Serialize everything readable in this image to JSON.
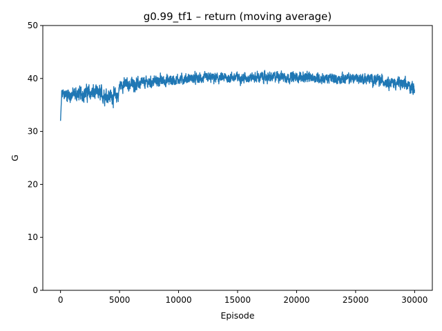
{
  "chart_data": {
    "type": "line",
    "title": "g0.99_tf1 – return (moving average)",
    "xlabel": "Episode",
    "ylabel": "G",
    "xlim": [
      -1500,
      31500
    ],
    "ylim": [
      0,
      50
    ],
    "xticks": [
      0,
      5000,
      10000,
      15000,
      20000,
      25000,
      30000
    ],
    "xtick_labels": [
      "0",
      "5000",
      "10000",
      "15000",
      "20000",
      "25000",
      "30000"
    ],
    "yticks": [
      0,
      10,
      20,
      30,
      40,
      50
    ],
    "ytick_labels": [
      "0",
      "10",
      "20",
      "30",
      "40",
      "50"
    ],
    "grid": false,
    "legend": "none",
    "series": [
      {
        "color": "#1f77b4",
        "x": [
          0,
          100,
          200,
          500,
          1000,
          1500,
          2000,
          2500,
          3000,
          3500,
          4000,
          4500,
          4900,
          5000,
          5200,
          5500,
          6000,
          6500,
          7000,
          7500,
          8000,
          8500,
          9000,
          9500,
          10000,
          10500,
          11000,
          11500,
          12000,
          12500,
          13000,
          13500,
          14000,
          14500,
          15000,
          15500,
          16000,
          16500,
          17000,
          17500,
          18000,
          18500,
          19000,
          19500,
          20000,
          20500,
          21000,
          21500,
          22000,
          22500,
          23000,
          23500,
          24000,
          24500,
          25000,
          25500,
          26000,
          26500,
          27000,
          27500,
          28000,
          28500,
          29000,
          29500,
          30000
        ],
        "y": [
          32.0,
          36.8,
          37.0,
          37.0,
          36.9,
          37.1,
          37.2,
          37.3,
          37.2,
          37.0,
          36.8,
          36.6,
          36.8,
          38.6,
          38.9,
          38.8,
          38.9,
          39.0,
          39.1,
          39.3,
          39.5,
          39.6,
          39.6,
          39.7,
          39.8,
          39.9,
          40.0,
          40.0,
          40.0,
          40.1,
          40.0,
          40.0,
          40.1,
          40.2,
          40.2,
          40.1,
          40.2,
          40.2,
          40.3,
          40.2,
          40.2,
          40.5,
          40.3,
          40.2,
          40.2,
          40.3,
          40.1,
          40.2,
          40.0,
          40.0,
          40.0,
          39.9,
          40.0,
          40.0,
          40.1,
          40.0,
          39.9,
          39.8,
          39.6,
          39.5,
          39.3,
          39.1,
          38.9,
          38.6,
          38.2
        ],
        "noise_amplitude": [
          0,
          1.2,
          1.2,
          1.2,
          1.3,
          1.3,
          1.3,
          1.4,
          1.4,
          1.4,
          1.4,
          1.4,
          1.4,
          1.1,
          1.1,
          1.1,
          1.1,
          1.1,
          1.0,
          1.0,
          1.0,
          1.0,
          1.0,
          1.0,
          0.9,
          0.9,
          0.9,
          0.9,
          0.9,
          0.9,
          0.9,
          0.9,
          0.9,
          0.9,
          0.9,
          0.9,
          0.9,
          0.9,
          0.9,
          0.9,
          0.9,
          1.0,
          0.9,
          0.9,
          0.9,
          0.9,
          0.9,
          0.9,
          0.9,
          0.9,
          0.9,
          0.9,
          0.9,
          0.9,
          0.9,
          0.9,
          1.0,
          1.0,
          1.0,
          1.0,
          1.0,
          1.1,
          1.1,
          1.1,
          1.1
        ]
      }
    ]
  }
}
